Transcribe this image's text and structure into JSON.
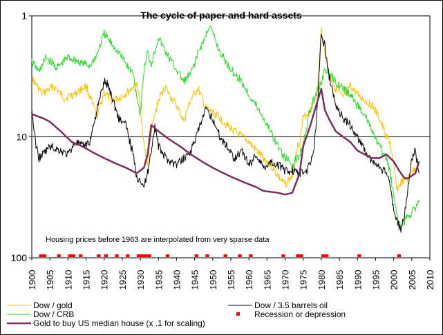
{
  "chart_data": {
    "type": "line",
    "title": "The cycle of paper and hard assets",
    "annotation": "Housing prices before 1963 are interpolated from very sparse data",
    "y_scale": "log",
    "y_inverted": true,
    "ylim": [
      1,
      100
    ],
    "xlim": [
      1900,
      2010
    ],
    "y_ticks": [
      {
        "value": 1,
        "label": "1"
      },
      {
        "value": 10,
        "label": "10"
      },
      {
        "value": 100,
        "label": "100"
      }
    ],
    "x_ticks": [
      "1900",
      "1905",
      "1910",
      "1915",
      "1920",
      "1925",
      "1930",
      "1935",
      "1940",
      "1945",
      "1950",
      "1955",
      "1960",
      "1965",
      "1970",
      "1975",
      "1980",
      "1985",
      "1990",
      "1995",
      "2000",
      "2005",
      "2010"
    ],
    "grid": "horizontal line at 10",
    "legend_position": "bottom",
    "series": [
      {
        "name": "Dow / gold",
        "color": "#ffc000",
        "x": [
          1900,
          1903,
          1906,
          1909,
          1912,
          1915,
          1918,
          1920,
          1922,
          1924,
          1926,
          1928,
          1929,
          1930,
          1931,
          1932,
          1933,
          1935,
          1937,
          1938,
          1940,
          1942,
          1944,
          1946,
          1948,
          1950,
          1952,
          1954,
          1956,
          1958,
          1960,
          1962,
          1964,
          1966,
          1968,
          1970,
          1972,
          1973,
          1974,
          1975,
          1977,
          1979,
          1980,
          1981,
          1982,
          1984,
          1986,
          1988,
          1990,
          1992,
          1994,
          1996,
          1998,
          1999,
          2000,
          2001,
          2002,
          2003,
          2004,
          2005,
          2006,
          2007
        ],
        "y": [
          3.3,
          4.4,
          3.8,
          4.8,
          4.4,
          3.8,
          6.8,
          4.3,
          5.0,
          4.8,
          4.4,
          3.9,
          3.5,
          5.5,
          12,
          17,
          9,
          5,
          3.8,
          4.5,
          5.5,
          7.5,
          4.8,
          4.0,
          5.8,
          6.3,
          7.0,
          8.0,
          9.0,
          10.0,
          11.0,
          13,
          15,
          17,
          21,
          25,
          21,
          13,
          11,
          7,
          6,
          4,
          1.3,
          2,
          3,
          4.0,
          4.8,
          3.8,
          4.5,
          5.0,
          5.5,
          7,
          10,
          11,
          18,
          27,
          24,
          23,
          22,
          20,
          18,
          17
        ]
      },
      {
        "name": "Dow / CRB",
        "color": "#22dd22",
        "x": [
          1900,
          1902,
          1904,
          1907,
          1910,
          1913,
          1916,
          1918,
          1920,
          1922,
          1924,
          1926,
          1928,
          1929,
          1930,
          1931,
          1932,
          1933,
          1935,
          1937,
          1940,
          1942,
          1944,
          1946,
          1948,
          1949,
          1950,
          1952,
          1954,
          1956,
          1958,
          1960,
          1962,
          1964,
          1966,
          1968,
          1970,
          1972,
          1974,
          1975,
          1977,
          1979,
          1980,
          1981,
          1982,
          1984,
          1986,
          1988,
          1990,
          1992,
          1994,
          1996,
          1998,
          1999,
          2000,
          2001,
          2002,
          2003,
          2004,
          2005,
          2006,
          2007
        ],
        "y": [
          2.4,
          2.9,
          2.2,
          2.7,
          2.2,
          2.4,
          2.6,
          2.1,
          1.4,
          1.7,
          2.0,
          2.5,
          3.0,
          4.5,
          6.5,
          2.8,
          2.0,
          2.5,
          1.5,
          2.0,
          2.8,
          3.5,
          3.0,
          2.0,
          1.5,
          1.2,
          1.4,
          2.0,
          2.5,
          3.0,
          3.5,
          4.5,
          5.5,
          7.0,
          9.0,
          12,
          15,
          17,
          14,
          11,
          6,
          4,
          3.5,
          2.8,
          3.0,
          3.5,
          4.0,
          4.5,
          5.5,
          6.5,
          9,
          12,
          15,
          20,
          30,
          45,
          55,
          50,
          45,
          42,
          38,
          35
        ]
      },
      {
        "name": "Dow / 3.5 barrels oil",
        "color": "#000000",
        "x": [
          1900,
          1901,
          1902,
          1903,
          1905,
          1908,
          1910,
          1912,
          1914,
          1916,
          1918,
          1920,
          1921,
          1922,
          1924,
          1926,
          1928,
          1929,
          1930,
          1931,
          1932,
          1933,
          1934,
          1935,
          1937,
          1940,
          1942,
          1944,
          1946,
          1948,
          1950,
          1952,
          1954,
          1956,
          1958,
          1960,
          1962,
          1964,
          1966,
          1968,
          1970,
          1972,
          1974,
          1976,
          1978,
          1979,
          1980,
          1981,
          1982,
          1984,
          1986,
          1988,
          1990,
          1992,
          1994,
          1996,
          1998,
          1999,
          2000,
          2001,
          2002,
          2003,
          2004,
          2005,
          2006,
          2007
        ],
        "y": [
          6,
          11,
          15,
          14,
          12,
          13,
          14,
          11,
          12,
          11,
          6,
          3.5,
          3.7,
          4.5,
          7,
          8,
          14,
          22,
          22,
          26,
          20,
          13,
          8,
          12,
          15,
          17,
          15,
          13,
          9,
          6,
          7,
          10,
          12,
          15,
          13,
          17,
          14,
          18,
          16,
          17,
          19,
          19,
          20,
          19,
          13,
          5,
          1.4,
          1.8,
          3.0,
          5.5,
          7.0,
          8.0,
          10,
          13,
          16,
          18,
          20,
          25,
          40,
          50,
          60,
          45,
          25,
          15,
          13,
          20
        ]
      },
      {
        "name": "Gold to buy US median house (x .1 for scaling)",
        "color": "#7b2d5f",
        "x": [
          1900,
          1903,
          1905,
          1908,
          1911,
          1914,
          1917,
          1920,
          1923,
          1926,
          1929,
          1931,
          1932,
          1933,
          1935,
          1938,
          1941,
          1944,
          1947,
          1950,
          1953,
          1956,
          1959,
          1962,
          1964,
          1966,
          1968,
          1970,
          1972,
          1974,
          1975,
          1977,
          1979,
          1980,
          1981,
          1982,
          1984,
          1986,
          1988,
          1990,
          1992,
          1994,
          1996,
          1998,
          2000,
          2001,
          2002,
          2003,
          2004,
          2005,
          2006,
          2007
        ],
        "y": [
          6.5,
          7.0,
          7.5,
          9.0,
          11,
          12,
          13.5,
          15,
          16.5,
          18,
          20,
          18,
          14,
          8,
          9,
          10.5,
          12,
          14,
          16,
          18,
          20,
          22,
          24,
          26,
          28,
          28.5,
          29,
          30,
          29,
          20,
          12,
          8,
          5,
          4,
          6,
          7,
          9,
          10,
          11,
          13,
          14,
          15,
          15,
          14,
          16,
          18,
          20,
          22,
          22,
          21,
          20,
          16
        ]
      },
      {
        "name": "Recession or depression",
        "color": "#ff0000",
        "type": "marker",
        "periods": [
          [
            1902,
            1904
          ],
          [
            1907,
            1908
          ],
          [
            1910,
            1912
          ],
          [
            1913,
            1914
          ],
          [
            1918,
            1919
          ],
          [
            1920,
            1921
          ],
          [
            1923,
            1924
          ],
          [
            1926,
            1927
          ],
          [
            1929,
            1933
          ],
          [
            1937,
            1938
          ],
          [
            1945,
            1946
          ],
          [
            1948,
            1949
          ],
          [
            1953,
            1954
          ],
          [
            1957,
            1958
          ],
          [
            1960,
            1961
          ],
          [
            1969,
            1970
          ],
          [
            1973,
            1975
          ],
          [
            1980,
            1981
          ],
          [
            1981,
            1982
          ],
          [
            1990,
            1991
          ],
          [
            2001,
            2002
          ]
        ]
      }
    ]
  }
}
